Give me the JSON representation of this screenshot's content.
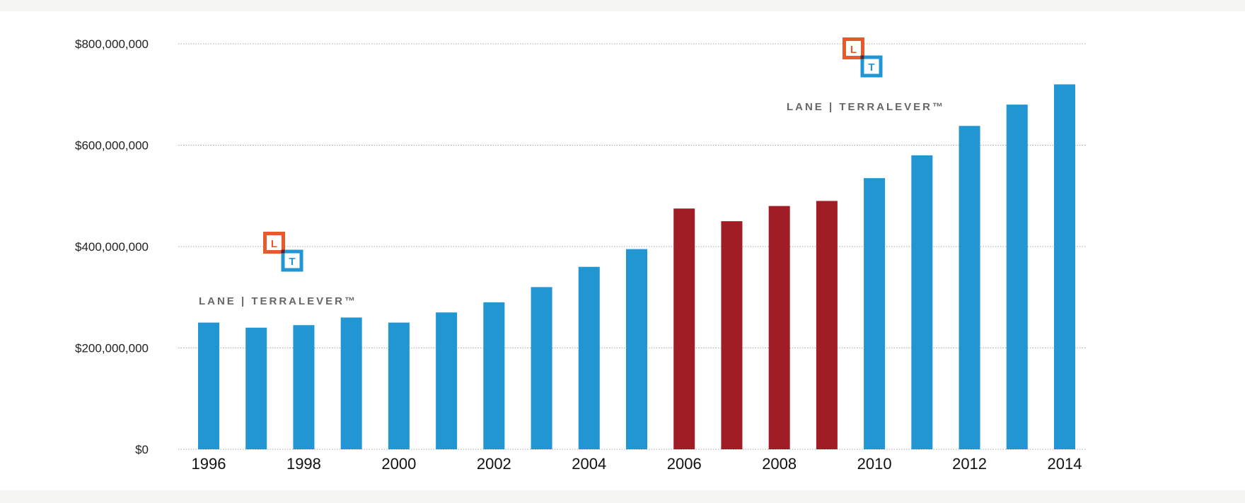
{
  "colors": {
    "normal_bar": "#2196d3",
    "highlight_bar": "#a11d25",
    "gridline": "#aaaaaa",
    "logo_orange": "#e85a2c",
    "logo_blue": "#2196d3",
    "background": "#ffffff",
    "page_background": "#f5f5f3"
  },
  "logos": [
    {
      "name": "lane-terralever-logo-left",
      "wordmark": "LANE | TERRALEVER™",
      "mark_l": "L",
      "mark_t": "T"
    },
    {
      "name": "lane-terralever-logo-right",
      "wordmark": "LANE | TERRALEVER™",
      "mark_l": "L",
      "mark_t": "T"
    }
  ],
  "chart_data": {
    "type": "bar",
    "title": "",
    "xlabel": "",
    "ylabel": "",
    "ylim": [
      0,
      800000000
    ],
    "yticks": [
      0,
      200000000,
      400000000,
      600000000,
      800000000
    ],
    "ytick_labels": [
      "$0",
      "$200,000,000",
      "$400,000,000",
      "$600,000,000",
      "$800,000,000"
    ],
    "grid": true,
    "legend": "none",
    "categories": [
      "1996",
      "1997",
      "1998",
      "1999",
      "2000",
      "2001",
      "2002",
      "2003",
      "2004",
      "2005",
      "2006",
      "2007",
      "2008",
      "2009",
      "2010",
      "2011",
      "2012",
      "2013",
      "2014"
    ],
    "xtick_labels": [
      "1996",
      "",
      "1998",
      "",
      "2000",
      "",
      "2002",
      "",
      "2004",
      "",
      "2006",
      "",
      "2008",
      "",
      "2010",
      "",
      "2012",
      "",
      "2014"
    ],
    "values": [
      250000000,
      240000000,
      245000000,
      260000000,
      250000000,
      270000000,
      290000000,
      320000000,
      360000000,
      395000000,
      475000000,
      450000000,
      480000000,
      490000000,
      535000000,
      580000000,
      638000000,
      680000000,
      720000000
    ],
    "highlight": [
      false,
      false,
      false,
      false,
      false,
      false,
      false,
      false,
      false,
      false,
      true,
      true,
      true,
      true,
      false,
      false,
      false,
      false,
      false
    ]
  }
}
